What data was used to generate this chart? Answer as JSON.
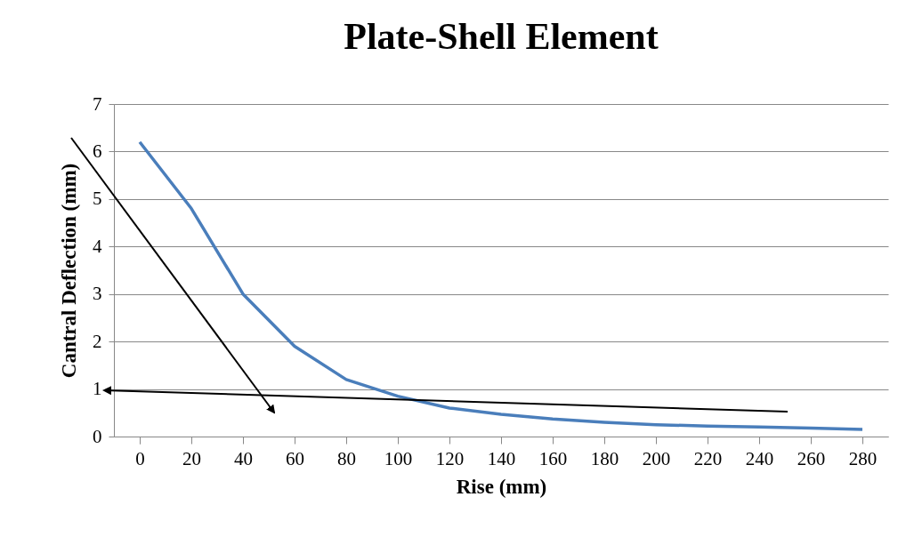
{
  "chart_data": {
    "type": "line",
    "title": "Plate-Shell Element",
    "xlabel": "Rise (mm)",
    "ylabel": "Cantral Deflection (mm)",
    "categories": [
      "0",
      "20",
      "40",
      "60",
      "80",
      "100",
      "120",
      "140",
      "160",
      "180",
      "200",
      "220",
      "240",
      "260",
      "280"
    ],
    "series": [
      {
        "color": "#4a7ebb",
        "values": [
          6.2,
          4.8,
          3.0,
          1.9,
          1.2,
          0.85,
          0.6,
          0.47,
          0.37,
          0.3,
          0.25,
          0.22,
          0.2,
          0.18,
          0.15
        ]
      }
    ],
    "ylim": [
      0,
      7
    ],
    "yticks": [
      0,
      1,
      2,
      3,
      4,
      5,
      6,
      7
    ],
    "grid": "y",
    "legend": false,
    "marker": "none",
    "line_style": "solid"
  }
}
